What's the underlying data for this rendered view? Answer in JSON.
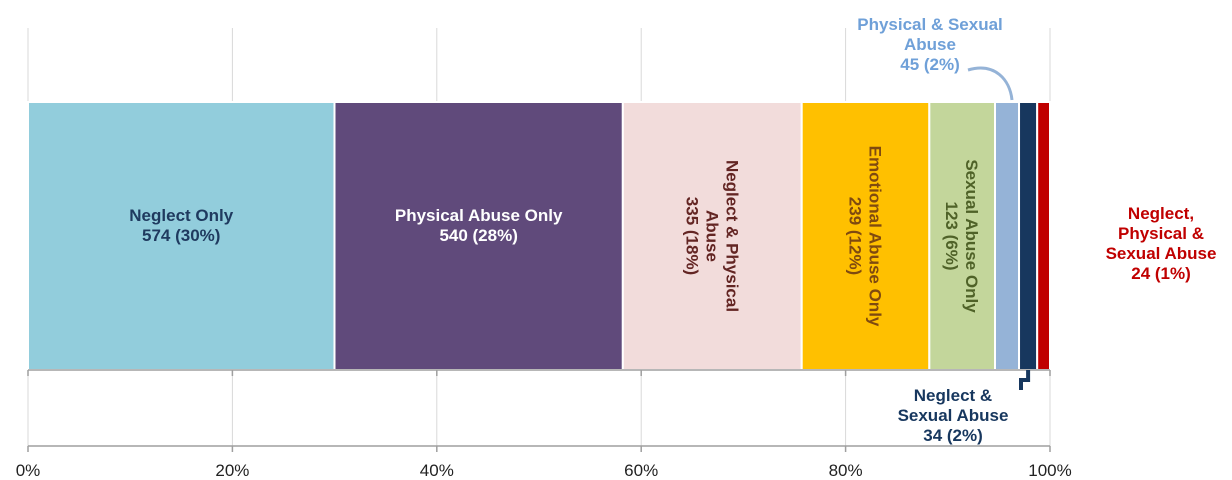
{
  "chart_data": {
    "type": "bar",
    "orientation": "horizontal-stacked-100",
    "title": "",
    "xlabel": "",
    "ylabel": "",
    "xlim": [
      0,
      100
    ],
    "x_ticks": [
      "0%",
      "20%",
      "40%",
      "60%",
      "80%",
      "100%"
    ],
    "grid": true,
    "legend": "none",
    "series": [
      {
        "name": "Neglect Only",
        "count": 574,
        "percent": 30,
        "label_lines": [
          "Neglect Only",
          "574 (30%)"
        ],
        "color": "#92cddc",
        "text_color": "#1f3a5f",
        "label_style": "horizontal-inside"
      },
      {
        "name": "Physical Abuse Only",
        "count": 540,
        "percent": 28,
        "label_lines": [
          "Physical Abuse Only",
          "540 (28%)"
        ],
        "color": "#604a7b",
        "text_color": "#ffffff",
        "label_style": "horizontal-inside"
      },
      {
        "name": "Neglect & Physical Abuse",
        "count": 335,
        "percent": 18,
        "label_lines": [
          "Neglect & Physical",
          "Abuse",
          "335 (18%)"
        ],
        "color": "#f2dcdb",
        "text_color": "#632523",
        "label_style": "vertical-inside"
      },
      {
        "name": "Emotional Abuse Only",
        "count": 239,
        "percent": 12,
        "label_lines": [
          "Emotional Abuse Only",
          "239 (12%)"
        ],
        "color": "#ffc000",
        "text_color": "#7f4a10",
        "label_style": "vertical-inside"
      },
      {
        "name": "Sexual Abuse Only",
        "count": 123,
        "percent": 6,
        "label_lines": [
          "Sexual Abuse Only",
          "123 (6%)"
        ],
        "color": "#c3d69b",
        "text_color": "#4f6228",
        "label_style": "vertical-inside"
      },
      {
        "name": "Physical & Sexual Abuse",
        "count": 45,
        "percent": 2,
        "label_lines": [
          "Physical & Sexual",
          "Abuse",
          "45 (2%)"
        ],
        "color": "#95b3d7",
        "text_color": "#6fa0d8",
        "label_style": "callout-top"
      },
      {
        "name": "Neglect & Sexual Abuse",
        "count": 34,
        "percent": 2,
        "label_lines": [
          "Neglect &",
          "Sexual Abuse",
          "34 (2%)"
        ],
        "color": "#17375e",
        "text_color": "#17375e",
        "label_style": "callout-bottom"
      },
      {
        "name": "Neglect, Physical & Sexual Abuse",
        "count": 24,
        "percent": 1,
        "label_lines": [
          "Neglect,",
          "Physical &",
          "Sexual Abuse",
          "24 (1%)"
        ],
        "color": "#c00000",
        "text_color": "#c00000",
        "label_style": "outside-right"
      }
    ]
  }
}
